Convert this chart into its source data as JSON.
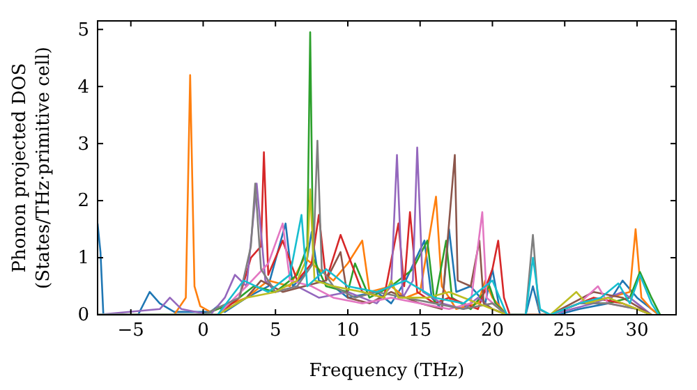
{
  "chart_data": {
    "type": "line",
    "xlabel": "Frequency (THz)",
    "ylabel": "Phonon projected DOS\n(States/THz·primitive cell)",
    "xlim": [
      -7.3,
      32.7
    ],
    "ylim": [
      0,
      5.15
    ],
    "xticks": [
      -5,
      0,
      5,
      10,
      15,
      20,
      25,
      30
    ],
    "yticks": [
      0,
      1,
      2,
      3,
      4,
      5
    ],
    "grid": false,
    "marker": "none",
    "line_style": "solid",
    "series": [
      {
        "color": "#1f77b4",
        "x": [
          -7.3,
          -7.1,
          -6.9,
          -4.5,
          -3.7,
          -3.0,
          -2.0,
          0.5,
          1.0,
          1.5,
          3.0,
          4.5,
          5.7,
          6.2,
          7.0,
          7.5,
          8.0,
          9.0,
          10.0,
          12.0,
          13.0,
          14.0,
          15.3,
          15.8,
          16.5,
          17.0,
          17.5,
          18.5,
          19.5,
          20.0,
          20.5,
          21.0,
          22.3,
          22.8,
          23.3,
          24.5,
          26.0,
          28.0,
          29.0,
          30.0,
          31.0,
          31.5
        ],
        "values": [
          1.6,
          1.1,
          0,
          0,
          0.4,
          0.2,
          0.05,
          0.05,
          0.15,
          0.05,
          0.3,
          0.5,
          1.6,
          0.5,
          0.7,
          1.45,
          0.6,
          0.5,
          0.3,
          0.4,
          0.2,
          0.6,
          1.3,
          0.3,
          0.1,
          1.5,
          0.4,
          0.5,
          0.2,
          0.8,
          0.1,
          0,
          0,
          0.5,
          0,
          0,
          0.1,
          0.2,
          0.6,
          0.3,
          0.1,
          0
        ]
      },
      {
        "color": "#ff7f0e",
        "x": [
          -7.3,
          -2.0,
          -1.2,
          -0.9,
          -0.6,
          -0.2,
          0.5,
          2.0,
          3.0,
          4.5,
          6.0,
          7.0,
          8.0,
          9.0,
          10.0,
          11.0,
          11.5,
          13.0,
          14.0,
          15.0,
          16.1,
          16.5,
          17.5,
          19.0,
          19.5,
          20.0,
          21.0,
          24.0,
          26.0,
          28.0,
          29.5,
          29.9,
          30.3,
          31.0,
          31.5
        ],
        "values": [
          0,
          0,
          0.3,
          4.2,
          0.5,
          0.15,
          0.05,
          0.2,
          0.3,
          0.6,
          0.5,
          1.0,
          0.8,
          0.6,
          0.9,
          1.3,
          0.4,
          0.5,
          0.3,
          0.4,
          2.07,
          0.5,
          0.1,
          0.2,
          0.6,
          0.3,
          0,
          0,
          0.2,
          0.3,
          0.4,
          1.5,
          0.3,
          0.1,
          0
        ]
      },
      {
        "color": "#2ca02c",
        "x": [
          -7.3,
          0,
          2.0,
          3.5,
          5.0,
          6.5,
          7.2,
          7.4,
          7.6,
          8.5,
          10.0,
          10.5,
          11.5,
          13.0,
          14.5,
          15.5,
          16.0,
          16.8,
          17.2,
          18.5,
          19.8,
          20.2,
          21.0,
          24.0,
          26.0,
          28.0,
          29.5,
          30.2,
          31.0,
          31.6
        ],
        "values": [
          0,
          0,
          0.2,
          0.5,
          0.4,
          0.7,
          1.2,
          4.95,
          1.0,
          0.5,
          0.4,
          0.9,
          0.3,
          0.5,
          0.8,
          1.3,
          0.2,
          1.3,
          0.3,
          0.1,
          0.5,
          0.2,
          0,
          0,
          0.2,
          0.2,
          0.3,
          0.75,
          0.3,
          0
        ]
      },
      {
        "color": "#d62728",
        "x": [
          -7.3,
          1.0,
          2.5,
          3.3,
          4.0,
          4.2,
          4.5,
          5.5,
          6.5,
          7.5,
          8.0,
          8.5,
          9.5,
          11.0,
          12.5,
          13.5,
          13.9,
          14.3,
          14.8,
          16.0,
          17.0,
          19.0,
          20.0,
          20.4,
          20.8,
          21.2,
          24.0,
          27.0,
          29.0,
          31.0
        ],
        "values": [
          0,
          0,
          0.3,
          1.0,
          1.2,
          2.85,
          0.7,
          1.3,
          0.6,
          0.9,
          1.75,
          0.6,
          1.4,
          0.4,
          0.3,
          1.6,
          0.5,
          1.8,
          0.4,
          0.2,
          0.3,
          0.1,
          0.8,
          1.3,
          0.3,
          0,
          0,
          0.3,
          0.2,
          0
        ]
      },
      {
        "color": "#9467bd",
        "x": [
          -7.3,
          -3.0,
          -2.3,
          -1.5,
          0.5,
          1.5,
          2.2,
          3.0,
          3.7,
          4.3,
          5.0,
          6.5,
          8.0,
          10.0,
          12.0,
          13.0,
          13.4,
          13.8,
          14.5,
          14.8,
          15.2,
          16.5,
          18.0,
          19.0,
          20.0,
          21.0,
          24.0,
          27.0,
          29.0,
          30.0,
          31.0
        ],
        "values": [
          0,
          0.1,
          0.3,
          0.1,
          0,
          0.3,
          0.7,
          0.5,
          2.3,
          0.6,
          0.4,
          0.5,
          0.3,
          0.4,
          0.2,
          0.5,
          2.8,
          0.3,
          0.6,
          2.93,
          0.4,
          0.2,
          0.1,
          0.3,
          0.1,
          0,
          0,
          0.2,
          0.4,
          0.2,
          0
        ]
      },
      {
        "color": "#8c564b",
        "x": [
          -7.3,
          1.0,
          3.0,
          4.0,
          5.5,
          7.0,
          8.5,
          9.5,
          10.0,
          11.5,
          13.0,
          15.0,
          16.5,
          17.4,
          17.6,
          18.5,
          19.1,
          19.4,
          20.0,
          21.0,
          24.0,
          27.0,
          29.0,
          31.0
        ],
        "values": [
          0,
          0,
          0.3,
          0.6,
          0.4,
          0.5,
          0.6,
          1.1,
          0.3,
          0.2,
          0.4,
          0.2,
          0.1,
          2.8,
          0.6,
          0.5,
          1.3,
          0.2,
          0.1,
          0,
          0,
          0.4,
          0.3,
          0
        ]
      },
      {
        "color": "#e377c2",
        "x": [
          -7.3,
          1.0,
          3.0,
          4.5,
          5.5,
          6.0,
          7.5,
          9.0,
          11.0,
          13.0,
          15.0,
          17.0,
          18.5,
          19.3,
          19.6,
          20.5,
          21.0,
          24.0,
          26.0,
          27.3,
          28.0,
          30.0,
          31.0
        ],
        "values": [
          0,
          0,
          0.5,
          0.9,
          1.6,
          0.6,
          0.5,
          0.3,
          0.2,
          0.3,
          0.2,
          0.1,
          0.2,
          1.8,
          0.3,
          0.1,
          0,
          0,
          0.2,
          0.5,
          0.2,
          0.1,
          0
        ]
      },
      {
        "color": "#7f7f7f",
        "x": [
          -7.3,
          0,
          2.5,
          3.3,
          3.6,
          4.0,
          5.0,
          6.5,
          7.6,
          7.9,
          8.2,
          9.0,
          10.5,
          12.0,
          14.0,
          16.0,
          18.0,
          20.0,
          21.0,
          22.3,
          22.8,
          23.2,
          24.0,
          26.0,
          28.0,
          30.0,
          31.0
        ],
        "values": [
          0,
          0,
          0.3,
          1.2,
          2.3,
          0.8,
          0.4,
          0.5,
          0.9,
          3.05,
          0.8,
          0.5,
          0.3,
          0.4,
          0.3,
          0.2,
          0.1,
          0.2,
          0,
          0,
          1.4,
          0.1,
          0,
          0.2,
          0.2,
          0.1,
          0
        ]
      },
      {
        "color": "#bcbd22",
        "x": [
          -7.3,
          1.0,
          3.0,
          5.0,
          6.5,
          7.2,
          7.4,
          7.7,
          9.0,
          11.0,
          12.5,
          13.0,
          13.5,
          15.5,
          17.0,
          20.0,
          21.0,
          24.0,
          25.8,
          26.5,
          28.0,
          29.0,
          30.0,
          31.0
        ],
        "values": [
          0,
          0,
          0.3,
          0.4,
          0.6,
          1.0,
          2.2,
          0.6,
          0.5,
          0.4,
          0.3,
          0.6,
          0.3,
          0.3,
          0.4,
          0.1,
          0,
          0,
          0.4,
          0.2,
          0.3,
          0.2,
          0.1,
          0
        ]
      },
      {
        "color": "#17becf",
        "x": [
          -7.3,
          1.0,
          2.8,
          4.5,
          6.0,
          6.8,
          7.2,
          8.5,
          10.0,
          12.0,
          14.0,
          16.0,
          18.0,
          20.0,
          21.0,
          22.3,
          22.8,
          23.3,
          24.0,
          26.0,
          27.5,
          28.7,
          29.5,
          30.2,
          31.0,
          31.5
        ],
        "values": [
          0,
          0,
          0.6,
          0.4,
          0.7,
          1.75,
          0.5,
          0.8,
          0.5,
          0.4,
          0.6,
          0.3,
          0.2,
          0.6,
          0,
          0,
          1.0,
          0.1,
          0,
          0.2,
          0.3,
          0.55,
          0.2,
          0.7,
          0.2,
          0
        ]
      }
    ]
  }
}
